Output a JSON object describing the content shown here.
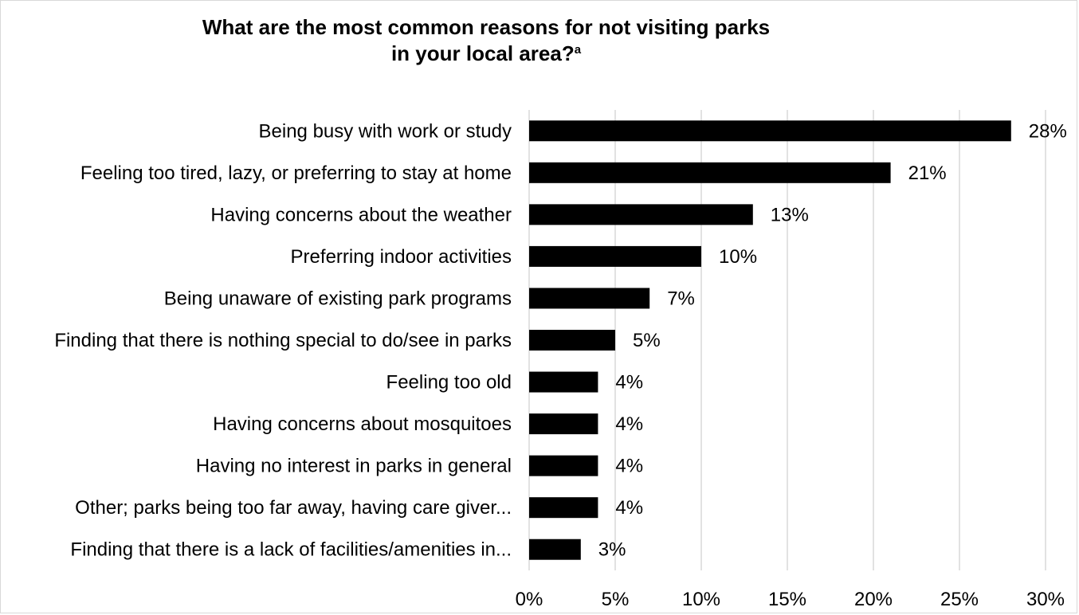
{
  "chart_data": {
    "type": "bar",
    "orientation": "horizontal",
    "title_line1": "What are the most common reasons for not visiting parks",
    "title_line2": "in your local area?",
    "title_superscript": "a",
    "categories": [
      "Being busy with work or study",
      "Feeling too tired, lazy, or preferring to stay at home",
      "Having concerns about the weather",
      "Preferring indoor activities",
      "Being unaware of existing park programs",
      "Finding that there is nothing special to do/see in parks",
      "Feeling too old",
      "Having concerns about mosquitoes",
      "Having no interest in parks in general",
      "Other; parks being too far away, having care giver...",
      "Finding that there is a lack of facilities/amenities in..."
    ],
    "values": [
      28,
      21,
      13,
      10,
      7,
      5,
      4,
      4,
      4,
      4,
      3
    ],
    "value_labels": [
      "28%",
      "21%",
      "13%",
      "10%",
      "7%",
      "5%",
      "4%",
      "4%",
      "4%",
      "4%",
      "3%"
    ],
    "xlim": [
      0,
      30
    ],
    "xticks": [
      0,
      5,
      10,
      15,
      20,
      25,
      30
    ],
    "xtick_labels": [
      "0%",
      "5%",
      "10%",
      "15%",
      "20%",
      "25%",
      "30%"
    ],
    "grid": "vertical",
    "legend": "none",
    "bar_color": "#000000",
    "grid_color": "#d9d9d9"
  }
}
